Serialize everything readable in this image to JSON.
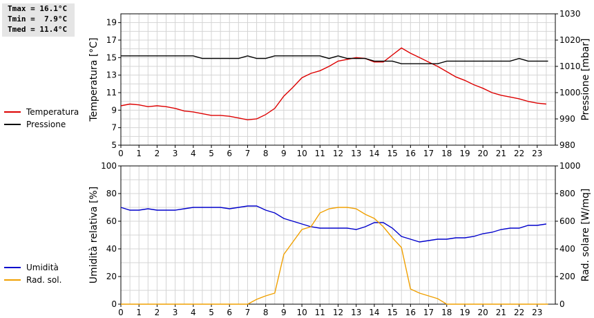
{
  "stats": {
    "tmax": "Tmax = 16.1°C",
    "tmin": "Tmin =  7.9°C",
    "tmed": "Tmed = 11.4°C"
  },
  "chart_data": [
    {
      "type": "line",
      "x_ticks": [
        "0",
        "1",
        "2",
        "3",
        "4",
        "5",
        "6",
        "7",
        "8",
        "9",
        "10",
        "11",
        "12",
        "13",
        "14",
        "15",
        "16",
        "17",
        "18",
        "19",
        "20",
        "21",
        "22",
        "23"
      ],
      "xlim": [
        0,
        24
      ],
      "grid": true,
      "legend_position": "left",
      "left_axis": {
        "label": "Temperatura [°C]",
        "ylim": [
          5,
          20
        ],
        "ticks": [
          "5",
          "7",
          "9",
          "11",
          "13",
          "15",
          "17",
          "19"
        ]
      },
      "right_axis": {
        "label": "Pressione [mbar]",
        "ylim": [
          980,
          1030
        ],
        "ticks": [
          "980",
          "990",
          "1000",
          "1010",
          "1020",
          "1030"
        ]
      },
      "series": [
        {
          "name": "Temperatura",
          "axis": "left",
          "color": "#dd0000",
          "points": [
            [
              0,
              9.5
            ],
            [
              0.5,
              9.7
            ],
            [
              1,
              9.6
            ],
            [
              1.5,
              9.4
            ],
            [
              2,
              9.5
            ],
            [
              2.5,
              9.4
            ],
            [
              3,
              9.2
            ],
            [
              3.5,
              8.9
            ],
            [
              4,
              8.8
            ],
            [
              4.5,
              8.6
            ],
            [
              5,
              8.4
            ],
            [
              5.5,
              8.4
            ],
            [
              6,
              8.3
            ],
            [
              6.5,
              8.1
            ],
            [
              7,
              7.9
            ],
            [
              7.5,
              8.0
            ],
            [
              8,
              8.5
            ],
            [
              8.5,
              9.2
            ],
            [
              9,
              10.6
            ],
            [
              9.5,
              11.6
            ],
            [
              10,
              12.7
            ],
            [
              10.5,
              13.2
            ],
            [
              11,
              13.5
            ],
            [
              11.5,
              14.0
            ],
            [
              12,
              14.6
            ],
            [
              12.5,
              14.8
            ],
            [
              13,
              15.0
            ],
            [
              13.5,
              14.9
            ],
            [
              14,
              14.5
            ],
            [
              14.5,
              14.5
            ],
            [
              15,
              15.3
            ],
            [
              15.5,
              16.1
            ],
            [
              16,
              15.5
            ],
            [
              16.5,
              15.0
            ],
            [
              17,
              14.5
            ],
            [
              17.5,
              14.0
            ],
            [
              18,
              13.4
            ],
            [
              18.5,
              12.8
            ],
            [
              19,
              12.4
            ],
            [
              19.5,
              11.9
            ],
            [
              20,
              11.5
            ],
            [
              20.5,
              11.0
            ],
            [
              21,
              10.7
            ],
            [
              21.5,
              10.5
            ],
            [
              22,
              10.3
            ],
            [
              22.5,
              10.0
            ],
            [
              23,
              9.8
            ],
            [
              23.5,
              9.7
            ]
          ]
        },
        {
          "name": "Pressione",
          "axis": "right",
          "color": "#000000",
          "points": [
            [
              0,
              1014
            ],
            [
              1,
              1014
            ],
            [
              2,
              1014
            ],
            [
              3,
              1014
            ],
            [
              4,
              1014
            ],
            [
              4.5,
              1013
            ],
            [
              5,
              1013
            ],
            [
              6,
              1013
            ],
            [
              6.5,
              1013
            ],
            [
              7,
              1014
            ],
            [
              7.5,
              1013
            ],
            [
              8,
              1013
            ],
            [
              8.5,
              1014
            ],
            [
              9,
              1014
            ],
            [
              10,
              1014
            ],
            [
              11,
              1014
            ],
            [
              11.5,
              1013
            ],
            [
              12,
              1014
            ],
            [
              12.5,
              1013
            ],
            [
              13,
              1013
            ],
            [
              13.5,
              1013
            ],
            [
              14,
              1012
            ],
            [
              15,
              1012
            ],
            [
              15.5,
              1011
            ],
            [
              16,
              1011
            ],
            [
              17,
              1011
            ],
            [
              17.5,
              1011
            ],
            [
              18,
              1012
            ],
            [
              19,
              1012
            ],
            [
              20,
              1012
            ],
            [
              21,
              1012
            ],
            [
              21.5,
              1012
            ],
            [
              22,
              1013
            ],
            [
              22.5,
              1012
            ],
            [
              23,
              1012
            ],
            [
              23.6,
              1012
            ]
          ]
        }
      ]
    },
    {
      "type": "line",
      "x_ticks": [
        "0",
        "1",
        "2",
        "3",
        "4",
        "5",
        "6",
        "7",
        "8",
        "9",
        "10",
        "11",
        "12",
        "13",
        "14",
        "15",
        "16",
        "17",
        "18",
        "19",
        "20",
        "21",
        "22",
        "23"
      ],
      "xlim": [
        0,
        24
      ],
      "grid": true,
      "legend_position": "left",
      "left_axis": {
        "label": "Umidità relativa [%]",
        "ylim": [
          0,
          100
        ],
        "ticks": [
          "0",
          "20",
          "40",
          "60",
          "80",
          "100"
        ]
      },
      "right_axis": {
        "label": "Rad. solare [W/mq]",
        "ylim": [
          0,
          1000
        ],
        "ticks": [
          "0",
          "200",
          "400",
          "600",
          "800",
          "1000"
        ]
      },
      "series": [
        {
          "name": "Umidità",
          "axis": "left",
          "color": "#0000cc",
          "points": [
            [
              0,
              70
            ],
            [
              0.5,
              68
            ],
            [
              1,
              68
            ],
            [
              1.5,
              69
            ],
            [
              2,
              68
            ],
            [
              3,
              68
            ],
            [
              3.5,
              69
            ],
            [
              4,
              70
            ],
            [
              5,
              70
            ],
            [
              5.5,
              70
            ],
            [
              6,
              69
            ],
            [
              6.5,
              70
            ],
            [
              7,
              71
            ],
            [
              7.5,
              71
            ],
            [
              8,
              68
            ],
            [
              8.5,
              66
            ],
            [
              9,
              62
            ],
            [
              9.5,
              60
            ],
            [
              10,
              58
            ],
            [
              10.5,
              56
            ],
            [
              11,
              55
            ],
            [
              12,
              55
            ],
            [
              12.5,
              55
            ],
            [
              13,
              54
            ],
            [
              13.5,
              56
            ],
            [
              14,
              59
            ],
            [
              14.5,
              59
            ],
            [
              15,
              55
            ],
            [
              15.5,
              49
            ],
            [
              16,
              47
            ],
            [
              16.5,
              45
            ],
            [
              17,
              46
            ],
            [
              17.5,
              47
            ],
            [
              18,
              47
            ],
            [
              18.5,
              48
            ],
            [
              19,
              48
            ],
            [
              19.5,
              49
            ],
            [
              20,
              51
            ],
            [
              20.5,
              52
            ],
            [
              21,
              54
            ],
            [
              21.5,
              55
            ],
            [
              22,
              55
            ],
            [
              22.5,
              57
            ],
            [
              23,
              57
            ],
            [
              23.5,
              58
            ]
          ]
        },
        {
          "name": "Rad. sol.",
          "axis": "right",
          "color": "#f0a000",
          "points": [
            [
              0,
              0
            ],
            [
              1,
              0
            ],
            [
              2,
              0
            ],
            [
              3,
              0
            ],
            [
              4,
              0
            ],
            [
              5,
              0
            ],
            [
              6,
              0
            ],
            [
              7,
              0
            ],
            [
              7.5,
              35
            ],
            [
              8,
              60
            ],
            [
              8.5,
              80
            ],
            [
              9,
              360
            ],
            [
              9.5,
              450
            ],
            [
              10,
              540
            ],
            [
              10.5,
              560
            ],
            [
              11,
              660
            ],
            [
              11.5,
              690
            ],
            [
              12,
              700
            ],
            [
              12.5,
              700
            ],
            [
              13,
              690
            ],
            [
              13.5,
              650
            ],
            [
              14,
              620
            ],
            [
              14.5,
              560
            ],
            [
              15,
              480
            ],
            [
              15.5,
              410
            ],
            [
              16,
              110
            ],
            [
              16.5,
              80
            ],
            [
              17,
              60
            ],
            [
              17.5,
              40
            ],
            [
              18,
              0
            ],
            [
              19,
              0
            ],
            [
              20,
              0
            ],
            [
              21,
              0
            ],
            [
              22,
              0
            ],
            [
              23,
              0
            ],
            [
              23.6,
              0
            ]
          ]
        }
      ]
    }
  ]
}
